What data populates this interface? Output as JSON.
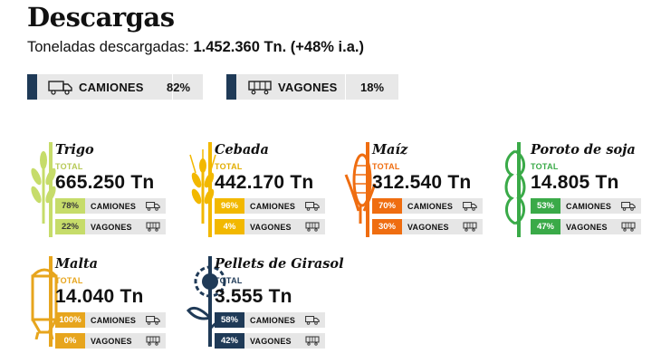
{
  "header": {
    "title": "Descargas",
    "subtitle_label": "Toneladas descargadas:",
    "subtitle_value": "1.452.360 Tn. (+48% i.a.)"
  },
  "totals": [
    {
      "label": "CAMIONES",
      "pct": "82%",
      "icon": "truck-icon"
    },
    {
      "label": "VAGONES",
      "pct": "18%",
      "icon": "railcar-icon"
    }
  ],
  "colors": {
    "navy": "#1f3a57",
    "trigo": "#c6dc6a",
    "cebada": "#f2b800",
    "maiz": "#ef6d10",
    "soja": "#3aaa48",
    "malta": "#e7a51d",
    "girasol": "#1f3a57"
  },
  "crops": [
    {
      "name": "Trigo",
      "total_label": "TOTAL",
      "tons": "665.250 Tn",
      "color": "#c6dc6a",
      "label_color": "#b6c956",
      "rows": [
        {
          "pct": "78%",
          "label": "CAMIONES",
          "icon": "truck-icon"
        },
        {
          "pct": "22%",
          "label": "VAGONES",
          "icon": "railcar-icon"
        }
      ]
    },
    {
      "name": "Cebada",
      "total_label": "TOTAL",
      "tons": "442.170 Tn",
      "color": "#f2b800",
      "label_color": "#e2ad00",
      "rows": [
        {
          "pct": "96%",
          "label": "CAMIONES",
          "icon": "truck-icon"
        },
        {
          "pct": "4%",
          "label": "VAGONES",
          "icon": "railcar-icon"
        }
      ]
    },
    {
      "name": "Maíz",
      "total_label": "TOTAL",
      "tons": "312.540 Tn",
      "color": "#ef6d10",
      "label_color": "#ef6d10",
      "rows": [
        {
          "pct": "70%",
          "label": "CAMIONES",
          "icon": "truck-icon"
        },
        {
          "pct": "30%",
          "label": "VAGONES",
          "icon": "railcar-icon"
        }
      ]
    },
    {
      "name": "Poroto de soja",
      "total_label": "TOTAL",
      "tons": "14.805 Tn",
      "color": "#3aaa48",
      "label_color": "#3aaa48",
      "rows": [
        {
          "pct": "53%",
          "label": "CAMIONES",
          "icon": "truck-icon"
        },
        {
          "pct": "47%",
          "label": "VAGONES",
          "icon": "railcar-icon"
        }
      ]
    },
    {
      "name": "Malta",
      "total_label": "TOTAL",
      "tons": "14.040 Tn",
      "color": "#e7a51d",
      "label_color": "#e7a51d",
      "rows": [
        {
          "pct": "100%",
          "label": "CAMIONES",
          "icon": "truck-icon"
        },
        {
          "pct": "0%",
          "label": "VAGONES",
          "icon": "railcar-icon"
        }
      ]
    },
    {
      "name": "Pellets de Girasol",
      "total_label": "TOTAL",
      "tons": "3.555 Tn",
      "color": "#1f3a57",
      "label_color": "#1f3a57",
      "rows": [
        {
          "pct": "58%",
          "label": "CAMIONES",
          "icon": "truck-icon"
        },
        {
          "pct": "42%",
          "label": "VAGONES",
          "icon": "railcar-icon"
        }
      ]
    }
  ]
}
